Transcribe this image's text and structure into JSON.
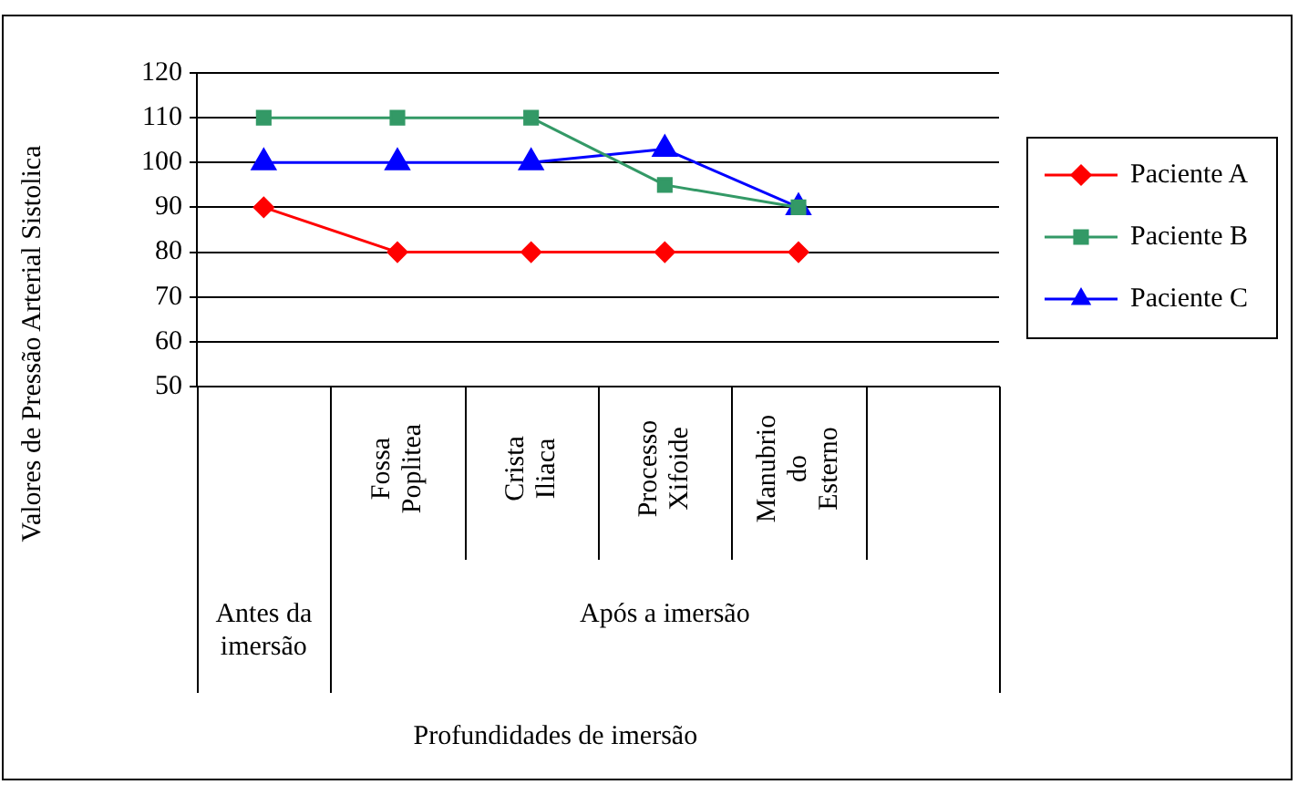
{
  "chart_data": {
    "type": "line",
    "ylabel": "Valores de Pressão Arterial Sistolica",
    "categories": [
      null,
      "Fossa Poplitea",
      "Crista Iliaca",
      "Processo Xifoide",
      "Manubrio do Esterno",
      null
    ],
    "annotations": [
      "Antes da imersão",
      "Após a imersão",
      "Profundidades de imersão"
    ],
    "series": [
      {
        "name": "Paciente A",
        "color": "#ff0000",
        "marker": "diamond",
        "values": [
          90,
          80,
          80,
          80,
          80,
          null
        ]
      },
      {
        "name": "Paciente B",
        "color": "#339966",
        "marker": "square",
        "values": [
          110,
          110,
          110,
          95,
          90,
          null
        ]
      },
      {
        "name": "Paciente C",
        "color": "#0000ff",
        "marker": "triangle",
        "values": [
          100,
          100,
          100,
          103,
          90,
          null
        ]
      }
    ],
    "ylim": [
      50,
      120
    ],
    "yticks": [
      50,
      60,
      70,
      80,
      90,
      100,
      110,
      120
    ],
    "grid": "y",
    "legend": "right",
    "line_style": "solid"
  }
}
